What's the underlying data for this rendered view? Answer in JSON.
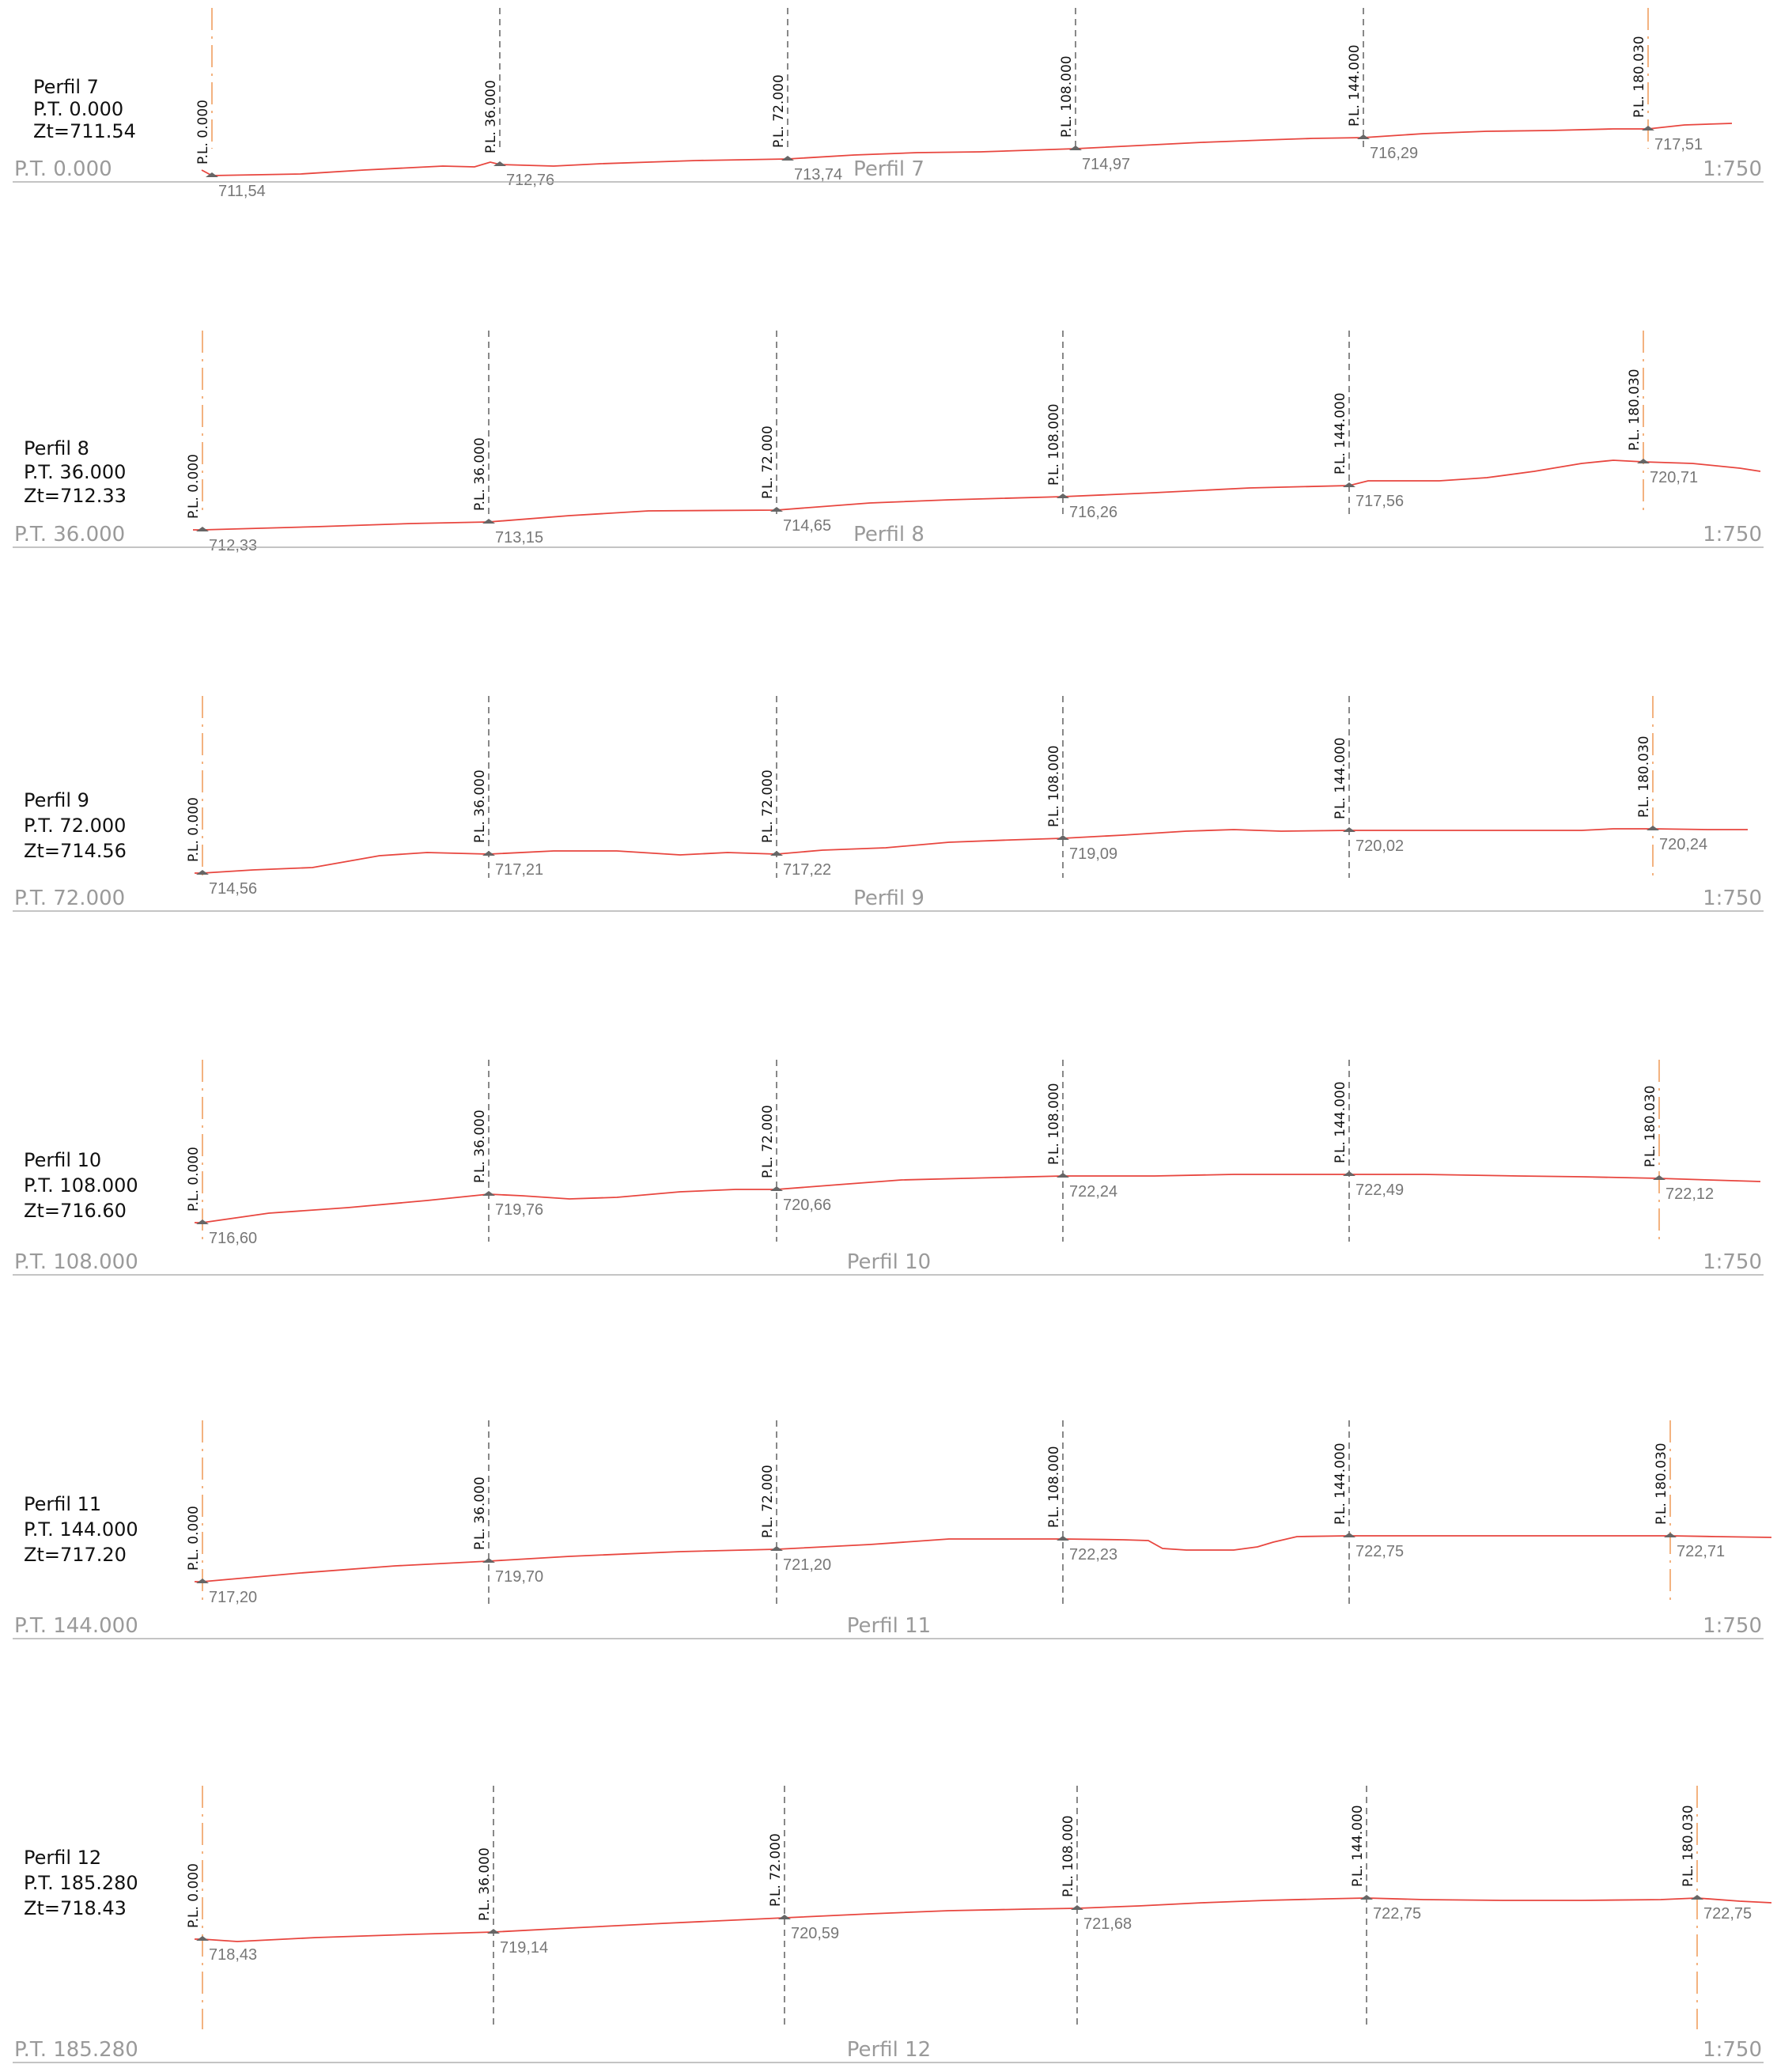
{
  "sheet": {
    "colors": {
      "terrain": "#e8463f",
      "grid": "#555555",
      "axis": "#f0a060",
      "footer": "#9a9a9a"
    },
    "profiles": [
      {
        "title": "Perfil 7",
        "pt": "P.T. 0.000",
        "zt": "Zt=711.54",
        "footer_left": "P.T. 0.000",
        "footer_center": "Perfil 7",
        "footer_right": "1:750",
        "stations": [
          {
            "label": "P.L. 0.000",
            "elev": "711,54",
            "axis": true
          },
          {
            "label": "P.L. 36.000",
            "elev": "712,76",
            "axis": false
          },
          {
            "label": "P.L. 72.000",
            "elev": "713,74",
            "axis": false
          },
          {
            "label": "P.L. 108.000",
            "elev": "714,97",
            "axis": false
          },
          {
            "label": "P.L. 144.000",
            "elev": "716,29",
            "axis": false
          },
          {
            "label": "P.L. 180.030",
            "elev": "717,51",
            "axis": true
          }
        ]
      },
      {
        "title": "Perfil 8",
        "pt": "P.T. 36.000",
        "zt": "Zt=712.33",
        "footer_left": "P.T. 36.000",
        "footer_center": "Perfil 8",
        "footer_right": "1:750",
        "stations": [
          {
            "label": "P.L. 0.000",
            "elev": "712,33",
            "axis": true
          },
          {
            "label": "P.L. 36.000",
            "elev": "713,15",
            "axis": false
          },
          {
            "label": "P.L. 72.000",
            "elev": "714,65",
            "axis": false
          },
          {
            "label": "P.L. 108.000",
            "elev": "716,26",
            "axis": false
          },
          {
            "label": "P.L. 144.000",
            "elev": "717,56",
            "axis": false
          },
          {
            "label": "P.L. 180.030",
            "elev": "720,71",
            "axis": true
          }
        ]
      },
      {
        "title": "Perfil 9",
        "pt": "P.T. 72.000",
        "zt": "Zt=714.56",
        "footer_left": "P.T. 72.000",
        "footer_center": "Perfil 9",
        "footer_right": "1:750",
        "stations": [
          {
            "label": "P.L. 0.000",
            "elev": "714,56",
            "axis": true
          },
          {
            "label": "P.L. 36.000",
            "elev": "717,21",
            "axis": false
          },
          {
            "label": "P.L. 72.000",
            "elev": "717,22",
            "axis": false
          },
          {
            "label": "P.L. 108.000",
            "elev": "719,09",
            "axis": false
          },
          {
            "label": "P.L. 144.000",
            "elev": "720,02",
            "axis": false
          },
          {
            "label": "P.L. 180.030",
            "elev": "720,24",
            "axis": true
          }
        ]
      },
      {
        "title": "Perfil 10",
        "pt": "P.T. 108.000",
        "zt": "Zt=716.60",
        "footer_left": "P.T. 108.000",
        "footer_center": "Perfil 10",
        "footer_right": "1:750",
        "stations": [
          {
            "label": "P.L. 0.000",
            "elev": "716,60",
            "axis": true
          },
          {
            "label": "P.L. 36.000",
            "elev": "719,76",
            "axis": false
          },
          {
            "label": "P.L. 72.000",
            "elev": "720,66",
            "axis": false
          },
          {
            "label": "P.L. 108.000",
            "elev": "722,24",
            "axis": false
          },
          {
            "label": "P.L. 144.000",
            "elev": "722,49",
            "axis": false
          },
          {
            "label": "P.L. 180.030",
            "elev": "722,12",
            "axis": true
          }
        ]
      },
      {
        "title": "Perfil 11",
        "pt": "P.T. 144.000",
        "zt": "Zt=717.20",
        "footer_left": "P.T. 144.000",
        "footer_center": "Perfil 11",
        "footer_right": "1:750",
        "stations": [
          {
            "label": "P.L. 0.000",
            "elev": "717,20",
            "axis": true
          },
          {
            "label": "P.L. 36.000",
            "elev": "719,70",
            "axis": false
          },
          {
            "label": "P.L. 72.000",
            "elev": "721,20",
            "axis": false
          },
          {
            "label": "P.L. 108.000",
            "elev": "722,23",
            "axis": false
          },
          {
            "label": "P.L. 144.000",
            "elev": "722,75",
            "axis": false
          },
          {
            "label": "P.L. 180.030",
            "elev": "722,71",
            "axis": true
          }
        ]
      },
      {
        "title": "Perfil 12",
        "pt": "P.T. 185.280",
        "zt": "Zt=718.43",
        "footer_left": "P.T. 185.280",
        "footer_center": "Perfil 12",
        "footer_right": "1:750",
        "stations": [
          {
            "label": "P.L. 0.000",
            "elev": "718,43",
            "axis": true
          },
          {
            "label": "P.L. 36.000",
            "elev": "719,14",
            "axis": false
          },
          {
            "label": "P.L. 72.000",
            "elev": "720,59",
            "axis": false
          },
          {
            "label": "P.L. 108.000",
            "elev": "721,68",
            "axis": false
          },
          {
            "label": "P.L. 144.000",
            "elev": "722,75",
            "axis": false
          },
          {
            "label": "P.L. 180.030",
            "elev": "722,75",
            "axis": true
          }
        ]
      }
    ]
  }
}
